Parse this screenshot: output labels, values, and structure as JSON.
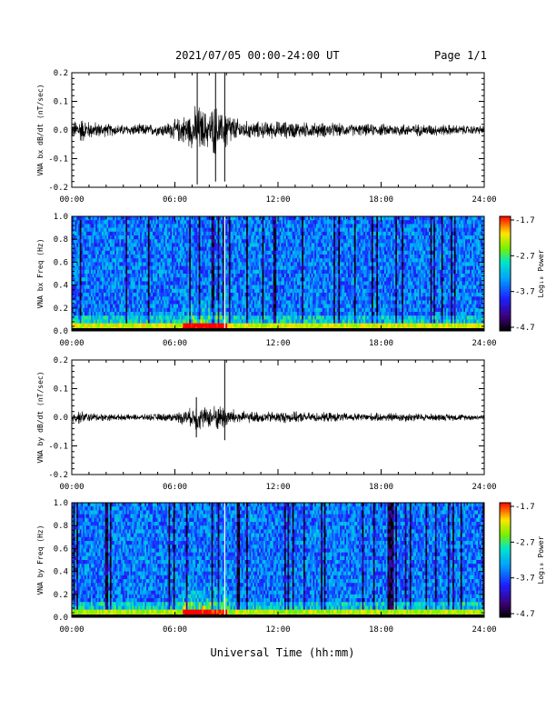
{
  "header": {
    "date_range": "2021/07/05  00:00-24:00 UT",
    "page": "Page 1/1"
  },
  "x_axis_label": "Universal Time (hh:mm)",
  "chart_data": [
    {
      "type": "line",
      "ylabel": "VNA bx dB/dt (nT/sec)",
      "ylim": [
        -0.2,
        0.2
      ],
      "yticks": [
        "0.2",
        "0.1",
        "0.0",
        "-0.1",
        "-0.2"
      ],
      "xlim": [
        "00:00",
        "24:00"
      ],
      "xticks": [
        "00:00",
        "06:00",
        "12:00",
        "18:00",
        "24:00"
      ],
      "envelope": {
        "time_hr": [
          0,
          0.5,
          1.0,
          2.0,
          3.0,
          4.0,
          5.0,
          5.5,
          6.0,
          6.5,
          7.0,
          7.3,
          7.6,
          8.0,
          8.3,
          8.6,
          8.8,
          9.0,
          9.3,
          9.6,
          10.0,
          10.5,
          11.0,
          12.0,
          13.0,
          14.0,
          15.0,
          16.0,
          17.0,
          18.0,
          19.0,
          20.0,
          21.0,
          22.0,
          23.0,
          24.0
        ],
        "amplitude": [
          0.025,
          0.045,
          0.03,
          0.022,
          0.018,
          0.02,
          0.02,
          0.025,
          0.035,
          0.05,
          0.06,
          0.09,
          0.07,
          0.06,
          0.09,
          0.06,
          0.05,
          0.08,
          0.05,
          0.04,
          0.03,
          0.03,
          0.028,
          0.03,
          0.028,
          0.025,
          0.025,
          0.02,
          0.02,
          0.02,
          0.022,
          0.02,
          0.02,
          0.018,
          0.015,
          0.015
        ]
      },
      "spikes": [
        {
          "time": "07:18",
          "max": 0.2,
          "min": -0.19
        },
        {
          "time": "08:22",
          "max": 0.2,
          "min": -0.18
        },
        {
          "time": "08:54",
          "max": 0.2,
          "min": -0.18
        }
      ]
    },
    {
      "type": "heatmap",
      "ylabel": "VNA bx Freq (Hz)",
      "ylim": [
        0.0,
        1.0
      ],
      "yticks": [
        "1.0",
        "0.8",
        "0.6",
        "0.4",
        "0.2",
        "0.0"
      ],
      "xlim": [
        "00:00",
        "24:00"
      ],
      "xticks": [
        "00:00",
        "06:00",
        "12:00",
        "18:00",
        "24:00"
      ],
      "colorbar": {
        "label": "Log₁₀ Power",
        "ticks": [
          "-1.7",
          "-2.7",
          "-3.7",
          "-4.7"
        ],
        "range": [
          -4.7,
          -1.7
        ]
      },
      "description_levels": {
        "background": -3.5,
        "low_freq_band": -2.3,
        "active_period": [
          "06:30",
          "09:00"
        ]
      },
      "data_gap": "08:54"
    },
    {
      "type": "line",
      "ylabel": "VNA by dB/dt (nT/sec)",
      "ylim": [
        -0.2,
        0.2
      ],
      "yticks": [
        "0.2",
        "0.1",
        "0.0",
        "-0.1",
        "-0.2"
      ],
      "xlim": [
        "00:00",
        "24:00"
      ],
      "xticks": [
        "00:00",
        "06:00",
        "12:00",
        "18:00",
        "24:00"
      ],
      "envelope": {
        "time_hr": [
          0,
          0.5,
          1.0,
          2.0,
          3.0,
          4.0,
          5.0,
          6.0,
          6.5,
          7.0,
          7.3,
          7.6,
          8.0,
          8.5,
          8.9,
          9.2,
          9.6,
          10.0,
          11.0,
          12.0,
          13.0,
          14.0,
          15.0,
          16.0,
          17.0,
          18.0,
          19.0,
          20.0,
          21.0,
          22.0,
          23.0,
          24.0
        ],
        "amplitude": [
          0.018,
          0.022,
          0.015,
          0.012,
          0.01,
          0.01,
          0.012,
          0.015,
          0.025,
          0.03,
          0.05,
          0.035,
          0.035,
          0.045,
          0.04,
          0.03,
          0.025,
          0.02,
          0.018,
          0.02,
          0.018,
          0.016,
          0.016,
          0.014,
          0.014,
          0.014,
          0.016,
          0.014,
          0.012,
          0.012,
          0.01,
          0.01
        ]
      },
      "spikes": [
        {
          "time": "07:15",
          "max": 0.07,
          "min": -0.07
        },
        {
          "time": "08:54",
          "max": 0.2,
          "min": -0.08
        }
      ]
    },
    {
      "type": "heatmap",
      "ylabel": "VNA by Freq (Hz)",
      "ylim": [
        0.0,
        1.0
      ],
      "yticks": [
        "1.0",
        "0.8",
        "0.6",
        "0.4",
        "0.2",
        "0.0"
      ],
      "xlim": [
        "00:00",
        "24:00"
      ],
      "xticks": [
        "00:00",
        "06:00",
        "12:00",
        "18:00",
        "24:00"
      ],
      "colorbar": {
        "label": "Log₁₀ Power",
        "ticks": [
          "-1.7",
          "-2.7",
          "-3.7",
          "-4.7"
        ],
        "range": [
          -4.7,
          -1.7
        ]
      },
      "description_levels": {
        "background": -3.5,
        "low_freq_band": -2.4,
        "active_period": [
          "06:30",
          "09:00"
        ]
      },
      "data_gap": "08:54"
    }
  ]
}
